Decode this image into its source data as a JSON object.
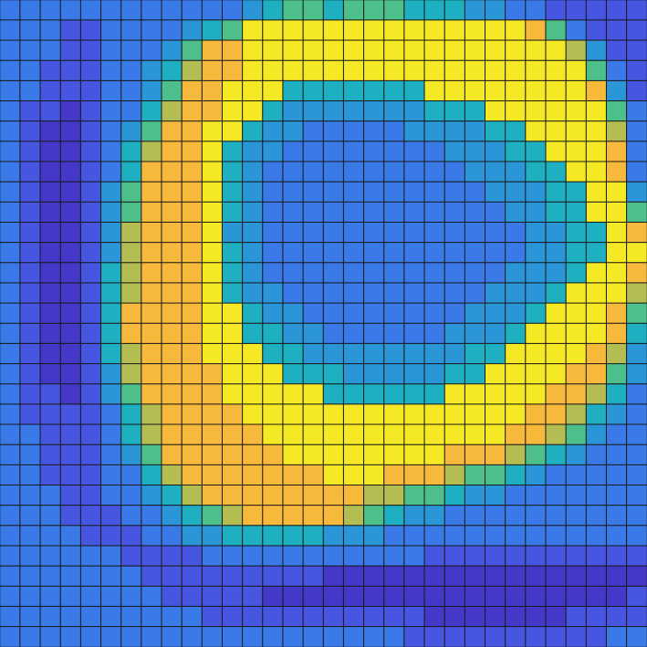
{
  "chart_data": {
    "type": "heatmap",
    "value_range": [
      0,
      9
    ],
    "tick_labels": false,
    "cells": [
      [
        3,
        3,
        3,
        3,
        3,
        3,
        3,
        3,
        3,
        3,
        3,
        3,
        4,
        5,
        6,
        6,
        5,
        6,
        6,
        6,
        5,
        5,
        5,
        4,
        4,
        3,
        3,
        2,
        2,
        2,
        2,
        2
      ],
      [
        3,
        3,
        3,
        2,
        2,
        3,
        3,
        3,
        3,
        4,
        5,
        6,
        9,
        9,
        9,
        9,
        9,
        9,
        9,
        9,
        9,
        9,
        9,
        9,
        9,
        9,
        8,
        6,
        3,
        2,
        2,
        2
      ],
      [
        3,
        3,
        3,
        2,
        2,
        3,
        3,
        3,
        4,
        6,
        8,
        8,
        9,
        9,
        9,
        9,
        9,
        9,
        9,
        9,
        9,
        9,
        9,
        9,
        9,
        9,
        9,
        9,
        7,
        4,
        2,
        2
      ],
      [
        3,
        3,
        2,
        2,
        2,
        3,
        3,
        4,
        5,
        7,
        8,
        8,
        9,
        9,
        9,
        9,
        9,
        9,
        9,
        9,
        9,
        9,
        9,
        9,
        9,
        9,
        9,
        9,
        9,
        6,
        3,
        2
      ],
      [
        3,
        3,
        2,
        2,
        2,
        3,
        3,
        4,
        6,
        8,
        8,
        9,
        9,
        9,
        5,
        5,
        5,
        5,
        5,
        5,
        5,
        9,
        9,
        9,
        9,
        9,
        9,
        9,
        9,
        8,
        4,
        2
      ],
      [
        3,
        2,
        2,
        1,
        2,
        3,
        3,
        5,
        7,
        8,
        8,
        9,
        9,
        5,
        4,
        4,
        4,
        4,
        4,
        4,
        4,
        5,
        5,
        5,
        9,
        9,
        9,
        9,
        9,
        9,
        6,
        3
      ],
      [
        3,
        2,
        1,
        1,
        2,
        3,
        4,
        6,
        8,
        8,
        9,
        9,
        5,
        4,
        4,
        3,
        3,
        3,
        3,
        3,
        4,
        4,
        4,
        4,
        5,
        5,
        9,
        9,
        9,
        9,
        7,
        3
      ],
      [
        3,
        2,
        1,
        1,
        2,
        3,
        5,
        7,
        8,
        8,
        9,
        5,
        4,
        4,
        3,
        3,
        3,
        3,
        3,
        3,
        3,
        3,
        4,
        4,
        4,
        5,
        5,
        9,
        9,
        9,
        8,
        3
      ],
      [
        3,
        2,
        1,
        1,
        2,
        3,
        5,
        8,
        8,
        8,
        9,
        5,
        4,
        3,
        3,
        3,
        3,
        3,
        3,
        3,
        3,
        3,
        3,
        4,
        4,
        4,
        5,
        5,
        9,
        9,
        8,
        3
      ],
      [
        3,
        2,
        1,
        1,
        2,
        4,
        6,
        8,
        8,
        8,
        9,
        5,
        4,
        3,
        3,
        3,
        3,
        3,
        3,
        3,
        3,
        3,
        3,
        3,
        4,
        4,
        4,
        5,
        5,
        9,
        9,
        4
      ],
      [
        3,
        2,
        1,
        1,
        2,
        4,
        6,
        8,
        8,
        8,
        9,
        5,
        4,
        3,
        3,
        3,
        3,
        3,
        3,
        3,
        3,
        3,
        3,
        3,
        3,
        4,
        4,
        5,
        5,
        9,
        9,
        6
      ],
      [
        3,
        2,
        1,
        1,
        2,
        4,
        7,
        8,
        8,
        8,
        9,
        4,
        4,
        3,
        3,
        3,
        3,
        3,
        3,
        3,
        3,
        3,
        3,
        3,
        3,
        3,
        4,
        4,
        5,
        5,
        9,
        8
      ],
      [
        3,
        2,
        1,
        1,
        2,
        4,
        7,
        8,
        8,
        8,
        9,
        5,
        4,
        3,
        3,
        3,
        3,
        3,
        3,
        3,
        3,
        3,
        3,
        3,
        3,
        3,
        4,
        4,
        5,
        5,
        9,
        9
      ],
      [
        3,
        2,
        1,
        1,
        2,
        5,
        7,
        8,
        8,
        8,
        9,
        5,
        4,
        3,
        3,
        3,
        3,
        3,
        3,
        3,
        3,
        3,
        3,
        3,
        3,
        4,
        4,
        4,
        5,
        9,
        9,
        8
      ],
      [
        3,
        2,
        1,
        1,
        2,
        5,
        7,
        8,
        8,
        8,
        9,
        5,
        4,
        4,
        3,
        3,
        3,
        3,
        3,
        3,
        3,
        3,
        3,
        3,
        4,
        4,
        4,
        5,
        9,
        9,
        9,
        7
      ],
      [
        3,
        2,
        1,
        1,
        2,
        5,
        8,
        8,
        8,
        8,
        9,
        9,
        5,
        4,
        4,
        3,
        3,
        3,
        3,
        3,
        3,
        3,
        3,
        4,
        4,
        4,
        5,
        9,
        9,
        9,
        8,
        6
      ],
      [
        3,
        2,
        1,
        1,
        2,
        5,
        8,
        8,
        8,
        8,
        9,
        9,
        5,
        5,
        4,
        4,
        3,
        3,
        3,
        3,
        3,
        3,
        4,
        4,
        4,
        5,
        9,
        9,
        9,
        9,
        8,
        5
      ],
      [
        3,
        2,
        1,
        1,
        2,
        5,
        7,
        8,
        8,
        8,
        9,
        9,
        9,
        5,
        5,
        4,
        4,
        4,
        4,
        4,
        4,
        4,
        4,
        5,
        5,
        9,
        9,
        9,
        9,
        8,
        7,
        4
      ],
      [
        3,
        2,
        1,
        1,
        2,
        4,
        7,
        8,
        8,
        8,
        8,
        9,
        9,
        9,
        5,
        5,
        5,
        4,
        4,
        4,
        4,
        4,
        5,
        5,
        9,
        9,
        9,
        9,
        8,
        8,
        6,
        4
      ],
      [
        3,
        2,
        2,
        1,
        2,
        4,
        6,
        8,
        8,
        8,
        8,
        9,
        9,
        9,
        9,
        9,
        5,
        5,
        5,
        5,
        5,
        5,
        9,
        9,
        9,
        9,
        9,
        8,
        8,
        7,
        5,
        3
      ],
      [
        3,
        2,
        2,
        2,
        2,
        3,
        5,
        7,
        8,
        8,
        8,
        8,
        9,
        9,
        9,
        9,
        9,
        9,
        9,
        9,
        9,
        9,
        9,
        9,
        9,
        9,
        8,
        8,
        7,
        5,
        4,
        3
      ],
      [
        3,
        3,
        2,
        2,
        2,
        3,
        5,
        7,
        8,
        8,
        8,
        8,
        8,
        9,
        9,
        9,
        9,
        9,
        9,
        9,
        9,
        9,
        9,
        9,
        9,
        8,
        8,
        7,
        6,
        4,
        3,
        3
      ],
      [
        3,
        3,
        2,
        2,
        2,
        3,
        4,
        6,
        8,
        8,
        8,
        8,
        8,
        8,
        9,
        9,
        9,
        9,
        9,
        9,
        9,
        9,
        8,
        8,
        8,
        7,
        6,
        5,
        4,
        3,
        3,
        3
      ],
      [
        3,
        3,
        2,
        2,
        2,
        3,
        3,
        5,
        7,
        8,
        8,
        8,
        8,
        8,
        8,
        8,
        9,
        9,
        9,
        8,
        8,
        8,
        7,
        6,
        6,
        5,
        4,
        3,
        3,
        3,
        3,
        3
      ],
      [
        3,
        3,
        3,
        2,
        2,
        3,
        3,
        4,
        5,
        7,
        8,
        8,
        8,
        8,
        8,
        8,
        8,
        8,
        7,
        7,
        6,
        6,
        5,
        4,
        4,
        3,
        3,
        3,
        3,
        3,
        3,
        3
      ],
      [
        3,
        3,
        3,
        2,
        2,
        2,
        3,
        3,
        4,
        5,
        6,
        7,
        8,
        8,
        8,
        8,
        8,
        7,
        6,
        5,
        4,
        4,
        3,
        3,
        3,
        3,
        3,
        3,
        3,
        3,
        3,
        3
      ],
      [
        3,
        3,
        3,
        3,
        2,
        2,
        2,
        3,
        3,
        4,
        4,
        5,
        5,
        5,
        5,
        5,
        4,
        4,
        4,
        3,
        3,
        3,
        3,
        3,
        3,
        3,
        3,
        3,
        3,
        3,
        3,
        3
      ],
      [
        3,
        3,
        3,
        3,
        3,
        3,
        2,
        2,
        2,
        2,
        3,
        3,
        3,
        3,
        3,
        3,
        3,
        3,
        3,
        3,
        3,
        2,
        2,
        2,
        2,
        2,
        2,
        2,
        2,
        2,
        2,
        2
      ],
      [
        3,
        3,
        3,
        3,
        3,
        3,
        3,
        2,
        2,
        2,
        2,
        2,
        2,
        2,
        2,
        2,
        1,
        1,
        1,
        1,
        1,
        1,
        1,
        1,
        1,
        1,
        1,
        1,
        1,
        1,
        1,
        1
      ],
      [
        3,
        3,
        3,
        3,
        3,
        3,
        3,
        3,
        2,
        2,
        2,
        2,
        2,
        1,
        1,
        1,
        1,
        1,
        1,
        1,
        1,
        1,
        1,
        1,
        1,
        1,
        1,
        1,
        1,
        1,
        1,
        2
      ],
      [
        3,
        3,
        3,
        3,
        3,
        3,
        3,
        3,
        3,
        3,
        2,
        2,
        2,
        2,
        2,
        2,
        2,
        2,
        2,
        2,
        2,
        1,
        1,
        1,
        1,
        1,
        1,
        1,
        2,
        2,
        2,
        2
      ],
      [
        3,
        3,
        3,
        3,
        3,
        3,
        3,
        3,
        3,
        3,
        3,
        3,
        3,
        3,
        3,
        3,
        3,
        3,
        3,
        3,
        2,
        2,
        2,
        2,
        2,
        2,
        2,
        2,
        2,
        2,
        3,
        3
      ]
    ]
  }
}
